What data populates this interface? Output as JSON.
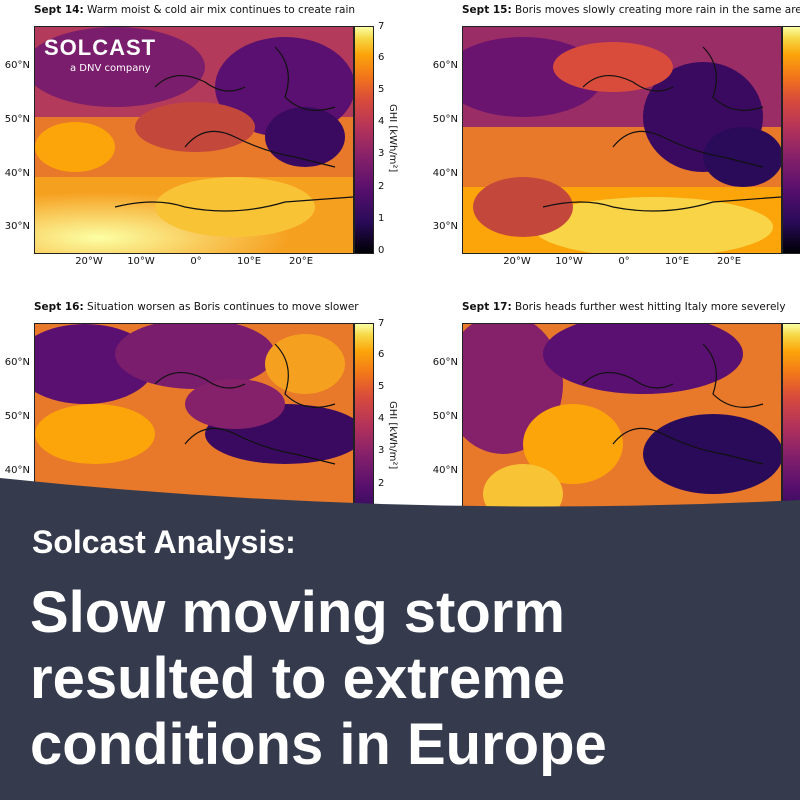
{
  "brand": {
    "name": "SOLCAST",
    "tagline": "a DNV company"
  },
  "panels": [
    {
      "date": "Sept 14:",
      "caption": "Warm moist & cold air mix continues to create rain"
    },
    {
      "date": "Sept 15:",
      "caption": "Boris moves slowly creating more rain in the same areas"
    },
    {
      "date": "Sept 16:",
      "caption": "Situation worsen as Boris continues to move slower"
    },
    {
      "date": "Sept 17:",
      "caption": "Boris heads further west hitting Italy more severely"
    }
  ],
  "axes": {
    "lat_ticks": [
      "60°N",
      "50°N",
      "40°N",
      "30°N"
    ],
    "lon_ticks": [
      "20°W",
      "10°W",
      "0°",
      "10°E",
      "20°E"
    ],
    "colorbar_label": "GHI [kWh/m²]",
    "colorbar_ticks": [
      "0",
      "1",
      "2",
      "3",
      "4",
      "5",
      "6",
      "7"
    ]
  },
  "overlay": {
    "kicker": "Solcast Analysis:",
    "headline": [
      "Slow moving storm",
      "resulted to extreme",
      "conditions in Europe"
    ]
  },
  "colors": {
    "overlay_bg": "#353b4d",
    "text": "#ffffff"
  }
}
